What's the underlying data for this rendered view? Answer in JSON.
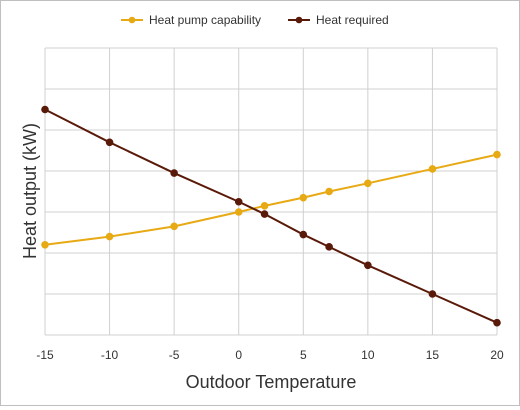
{
  "chart_data": {
    "type": "line",
    "title": "",
    "xlabel": "Outdoor Temperature",
    "ylabel": "Heat output (kW)",
    "xlim": [
      -15,
      20
    ],
    "ylim": [
      0,
      14
    ],
    "x_ticks": [
      -15,
      -10,
      -5,
      0,
      5,
      10,
      15,
      20
    ],
    "x_tick_labels": [
      "-15",
      "-10",
      "-5",
      "0",
      "5",
      "10",
      "15",
      "20"
    ],
    "y_gridlines": [
      0,
      2,
      4,
      6,
      8,
      10,
      12,
      14
    ],
    "y_tick_labels_shown": false,
    "grid": true,
    "legend_position": "top",
    "series": [
      {
        "name": "Heat pump capability",
        "color": "#e8aa14",
        "x": [
          -15,
          -10,
          -5,
          0,
          2,
          5,
          7,
          10,
          15,
          20
        ],
        "values": [
          4.4,
          4.8,
          5.3,
          6.0,
          6.3,
          6.7,
          7.0,
          7.4,
          8.1,
          8.8
        ]
      },
      {
        "name": "Heat required",
        "color": "#5a1a0a",
        "x": [
          -15,
          -10,
          -5,
          0,
          2,
          5,
          7,
          10,
          15,
          20
        ],
        "values": [
          11.0,
          9.4,
          7.9,
          6.5,
          5.9,
          4.9,
          4.3,
          3.4,
          2.0,
          0.6
        ]
      }
    ]
  }
}
